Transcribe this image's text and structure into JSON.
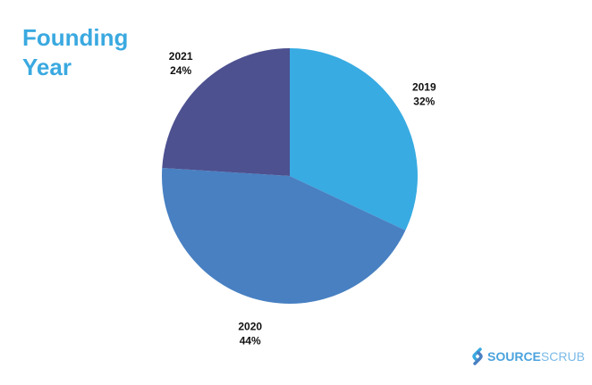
{
  "chart_data": {
    "type": "pie",
    "title": "Founding Year",
    "slices": [
      {
        "label": "2019",
        "value": 32,
        "display": "32%",
        "color": "#38abe2"
      },
      {
        "label": "2020",
        "value": 44,
        "display": "44%",
        "color": "#4880c2"
      },
      {
        "label": "2021",
        "value": 24,
        "display": "24%",
        "color": "#4d5190"
      }
    ]
  },
  "logo": {
    "bold": "SOURCE",
    "light": "SCRUB"
  }
}
